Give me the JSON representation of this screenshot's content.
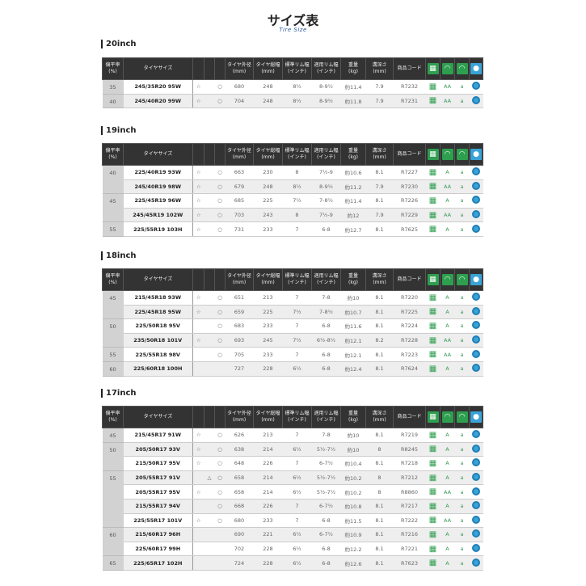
{
  "title": "サイズ表",
  "subtitle": "Tire Size",
  "headers": [
    "偏平率\n(%)",
    "タイヤサイズ",
    "",
    "",
    "",
    "タイヤ外径\n(mm)",
    "タイヤ総幅\n(mm)",
    "標準リム幅\n(インチ)",
    "適用リム幅\n(インチ)",
    "重量\n(kg)",
    "溝深さ\n(mm)",
    "商品コード"
  ],
  "header_icons": [
    {
      "name": "wet-tire-icon",
      "color": "#2e9e4f"
    },
    {
      "name": "rolling-resistance-icon",
      "color": "#2e9e4f"
    },
    {
      "name": "wet-grip-icon",
      "color": "#2e9e4f"
    },
    {
      "name": "noise-icon",
      "color": "#3aa3d6"
    }
  ],
  "sections": [
    {
      "label": "20inch",
      "groups": [
        {
          "ratio": "35",
          "rows": [
            [
              "245/35R20 95W",
              "☆",
              "",
              "○",
              "680",
              "248",
              "8½",
              "8-9½",
              "約11.4",
              "7.9",
              "R7232",
              "AA",
              "a"
            ]
          ]
        },
        {
          "ratio": "40",
          "rows": [
            [
              "245/40R20 99W",
              "☆",
              "",
              "○",
              "704",
              "248",
              "8½",
              "8-9½",
              "約11.8",
              "7.9",
              "R7231",
              "AA",
              "a"
            ]
          ]
        }
      ]
    },
    {
      "label": "19inch",
      "groups": [
        {
          "ratio": "40",
          "rows": [
            [
              "225/40R19 93W",
              "☆",
              "",
              "○",
              "663",
              "230",
              "8",
              "7½-9",
              "約10.6",
              "8.1",
              "R7227",
              "A",
              "a"
            ],
            [
              "245/40R19 98W",
              "☆",
              "",
              "○",
              "679",
              "248",
              "8½",
              "8-9½",
              "約11.2",
              "7.9",
              "R7230",
              "AA",
              "a"
            ]
          ]
        },
        {
          "ratio": "45",
          "rows": [
            [
              "225/45R19 96W",
              "☆",
              "",
              "○",
              "685",
              "225",
              "7½",
              "7-8½",
              "約11.4",
              "8.1",
              "R7226",
              "A",
              "a"
            ],
            [
              "245/45R19 102W",
              "☆",
              "",
              "○",
              "703",
              "243",
              "8",
              "7½-9",
              "約12",
              "7.9",
              "R7229",
              "AA",
              "a"
            ]
          ]
        },
        {
          "ratio": "55",
          "rows": [
            [
              "225/55R19 103H",
              "☆",
              "",
              "○",
              "731",
              "233",
              "7",
              "6-8",
              "約12.7",
              "8.1",
              "R7625",
              "A",
              "a"
            ]
          ]
        }
      ]
    },
    {
      "label": "18inch",
      "groups": [
        {
          "ratio": "45",
          "rows": [
            [
              "215/45R18 93W",
              "☆",
              "",
              "○",
              "651",
              "213",
              "7",
              "7-8",
              "約10",
              "8.1",
              "R7220",
              "A",
              "a"
            ],
            [
              "225/45R18 95W",
              "☆",
              "",
              "○",
              "659",
              "225",
              "7½",
              "7-8½",
              "約10.7",
              "8.1",
              "R7225",
              "A",
              "a"
            ]
          ]
        },
        {
          "ratio": "50",
          "rows": [
            [
              "225/50R18 95V",
              "",
              "",
              "○",
              "683",
              "233",
              "7",
              "6-8",
              "約11.6",
              "8.1",
              "R7224",
              "A",
              "a"
            ],
            [
              "235/50R18 101V",
              "☆",
              "",
              "○",
              "693",
              "245",
              "7½",
              "6½-8½",
              "約12.1",
              "8.2",
              "R7228",
              "AA",
              "a"
            ]
          ]
        },
        {
          "ratio": "55",
          "rows": [
            [
              "225/55R18 98V",
              "",
              "",
              "○",
              "705",
              "233",
              "7",
              "6-8",
              "約12.1",
              "8.1",
              "R7223",
              "AA",
              "a"
            ]
          ]
        },
        {
          "ratio": "60",
          "rows": [
            [
              "225/60R18 100H",
              "",
              "",
              "",
              "727",
              "228",
              "6½",
              "6-8",
              "約12.4",
              "8.1",
              "R7624",
              "A",
              "a"
            ]
          ]
        }
      ]
    },
    {
      "label": "17inch",
      "groups": [
        {
          "ratio": "45",
          "rows": [
            [
              "215/45R17 91W",
              "☆",
              "",
              "○",
              "626",
              "213",
              "7",
              "7-8",
              "約10",
              "8.1",
              "R7219",
              "A",
              "a"
            ]
          ]
        },
        {
          "ratio": "50",
          "rows": [
            [
              "205/50R17 93V",
              "☆",
              "",
              "○",
              "638",
              "214",
              "6½",
              "5½-7½",
              "約10",
              "8",
              "R8245",
              "A",
              "a"
            ],
            [
              "215/50R17 95V",
              "☆",
              "",
              "○",
              "648",
              "226",
              "7",
              "6-7½",
              "約10.4",
              "8.1",
              "R7218",
              "A",
              "a"
            ]
          ]
        },
        {
          "ratio": "55",
          "rows": [
            [
              "205/55R17 91V",
              "",
              "△",
              "○",
              "658",
              "214",
              "6½",
              "5½-7½",
              "約10.2",
              "8",
              "R7212",
              "A",
              "a"
            ],
            [
              "205/55R17 95V",
              "☆",
              "",
              "○",
              "658",
              "214",
              "6½",
              "5½-7½",
              "約10.2",
              "8",
              "R8860",
              "AA",
              "a"
            ],
            [
              "215/55R17 94V",
              "",
              "",
              "○",
              "668",
              "226",
              "7",
              "6-7½",
              "約10.8",
              "8.1",
              "R7217",
              "A",
              "a"
            ],
            [
              "225/55R17 101V",
              "☆",
              "",
              "○",
              "680",
              "233",
              "7",
              "6-8",
              "約11.5",
              "8.1",
              "R7222",
              "AA",
              "a"
            ]
          ]
        },
        {
          "ratio": "60",
          "rows": [
            [
              "215/60R17 96H",
              "",
              "",
              "",
              "690",
              "221",
              "6½",
              "6-7½",
              "約10.9",
              "8.1",
              "R7216",
              "A",
              "a"
            ],
            [
              "225/60R17 99H",
              "",
              "",
              "",
              "702",
              "228",
              "6½",
              "6-8",
              "約12.2",
              "8.1",
              "R7221",
              "A",
              "a"
            ]
          ]
        },
        {
          "ratio": "65",
          "rows": [
            [
              "225/65R17 102H",
              "",
              "",
              "",
              "724",
              "228",
              "6½",
              "6-8",
              "約12.6",
              "8.1",
              "R7623",
              "A",
              "a"
            ]
          ]
        }
      ]
    }
  ]
}
